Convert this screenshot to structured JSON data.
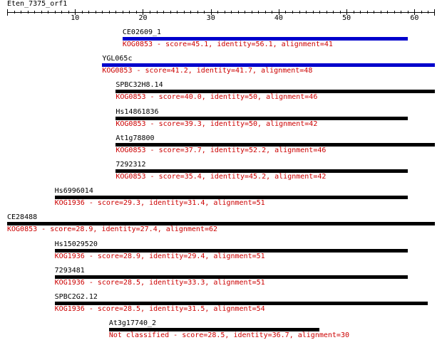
{
  "query": {
    "title": "Eten_7375_orf1",
    "length": 63,
    "ticks": [
      10,
      20,
      30,
      40,
      50,
      60
    ]
  },
  "colors": {
    "bar_blue": "#0000cc",
    "bar_black": "#000000",
    "desc_text": "#cc0000",
    "axis": "#000000"
  },
  "hits": [
    {
      "name": "CE02609_1",
      "start": 17,
      "end": 59,
      "bar_color": "#0000cc",
      "desc": "KOG0853 - score=45.1, identity=56.1, alignment=41"
    },
    {
      "name": "YGL065c",
      "start": 14,
      "end": 63,
      "bar_color": "#0000cc",
      "desc": "KOG0853 - score=41.2, identity=41.7, alignment=48"
    },
    {
      "name": "SPBC32H8.14",
      "start": 16,
      "end": 63,
      "bar_color": "#000000",
      "desc": "KOG0853 - score=40.0, identity=50, alignment=46"
    },
    {
      "name": "Hs14861836",
      "start": 16,
      "end": 59,
      "bar_color": "#000000",
      "desc": "KOG0853 - score=39.3, identity=50, alignment=42"
    },
    {
      "name": "At1g78800",
      "start": 16,
      "end": 63,
      "bar_color": "#000000",
      "desc": "KOG0853 - score=37.7, identity=52.2, alignment=46"
    },
    {
      "name": "7292312",
      "start": 16,
      "end": 59,
      "bar_color": "#000000",
      "desc": "KOG0853 - score=35.4, identity=45.2, alignment=42"
    },
    {
      "name": "Hs6996014",
      "start": 7,
      "end": 59,
      "bar_color": "#000000",
      "desc": "KOG1936 - score=29.3, identity=31.4, alignment=51"
    },
    {
      "name": "CE28488",
      "start": 0,
      "end": 63,
      "bar_color": "#000000",
      "desc": "KOG0853 - score=28.9, identity=27.4, alignment=62"
    },
    {
      "name": "Hs15029520",
      "start": 7,
      "end": 59,
      "bar_color": "#000000",
      "desc": "KOG1936 - score=28.9, identity=29.4, alignment=51"
    },
    {
      "name": "7293481",
      "start": 7,
      "end": 59,
      "bar_color": "#000000",
      "desc": "KOG1936 - score=28.5, identity=33.3, alignment=51"
    },
    {
      "name": "SPBC2G2.12",
      "start": 7,
      "end": 62,
      "bar_color": "#000000",
      "desc": "KOG1936 - score=28.5, identity=31.5, alignment=54"
    },
    {
      "name": "At3g17740_2",
      "start": 15,
      "end": 46,
      "bar_color": "#000000",
      "desc": "Not classified - score=28.5, identity=36.7, alignment=30"
    }
  ]
}
